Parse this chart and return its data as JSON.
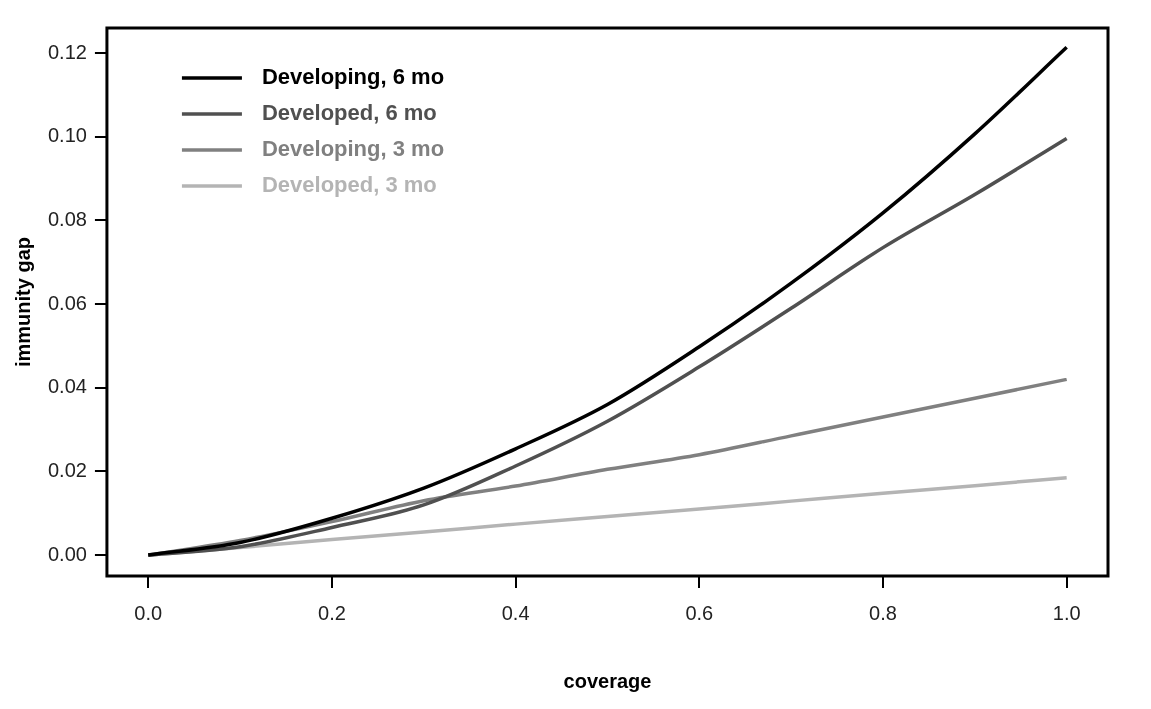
{
  "chart_data": {
    "type": "line",
    "xlabel": "coverage",
    "ylabel": "immunity gap",
    "x": [
      0,
      0.1,
      0.2,
      0.3,
      0.4,
      0.5,
      0.6,
      0.7,
      0.8,
      0.9,
      1.0
    ],
    "series": [
      {
        "name": "Developing, 6 mo",
        "color": "#000000",
        "values": [
          0,
          0.003,
          0.0088,
          0.016,
          0.0254,
          0.036,
          0.0498,
          0.065,
          0.0818,
          0.1007,
          0.1214
        ]
      },
      {
        "name": "Developed, 6 mo",
        "color": "#505050",
        "values": [
          0,
          0.002,
          0.0066,
          0.012,
          0.0213,
          0.032,
          0.045,
          0.059,
          0.0735,
          0.0862,
          0.0996
        ]
      },
      {
        "name": "Developing, 3 mo",
        "color": "#808080",
        "values": [
          0,
          0.0035,
          0.008,
          0.013,
          0.0165,
          0.0205,
          0.024,
          0.0285,
          0.033,
          0.0375,
          0.042
        ]
      },
      {
        "name": "Developed, 3 mo",
        "color": "#b4b4b4",
        "values": [
          0,
          0.0018,
          0.0037,
          0.0055,
          0.0074,
          0.0092,
          0.011,
          0.0129,
          0.0148,
          0.0166,
          0.0185
        ]
      }
    ],
    "xlim": [
      -0.045,
      1.045
    ],
    "xticks": [
      {
        "value": 0,
        "label": "0.0"
      },
      {
        "value": 0.2,
        "label": "0.2"
      },
      {
        "value": 0.4,
        "label": "0.4"
      },
      {
        "value": 0.6,
        "label": "0.6"
      },
      {
        "value": 0.8,
        "label": "0.8"
      },
      {
        "value": 1,
        "label": "1.0"
      }
    ],
    "ylim": [
      -0.005,
      0.126
    ],
    "yticks": [
      {
        "value": 0,
        "label": "0.00"
      },
      {
        "value": 0.02,
        "label": "0.02"
      },
      {
        "value": 0.04,
        "label": "0.04"
      },
      {
        "value": 0.06,
        "label": "0.06"
      },
      {
        "value": 0.08,
        "label": "0.08"
      },
      {
        "value": 0.1,
        "label": "0.10"
      },
      {
        "value": 0.12,
        "label": "0.12"
      }
    ],
    "grid": false,
    "legend": "top left",
    "marker": "none",
    "line_style": "solid"
  }
}
